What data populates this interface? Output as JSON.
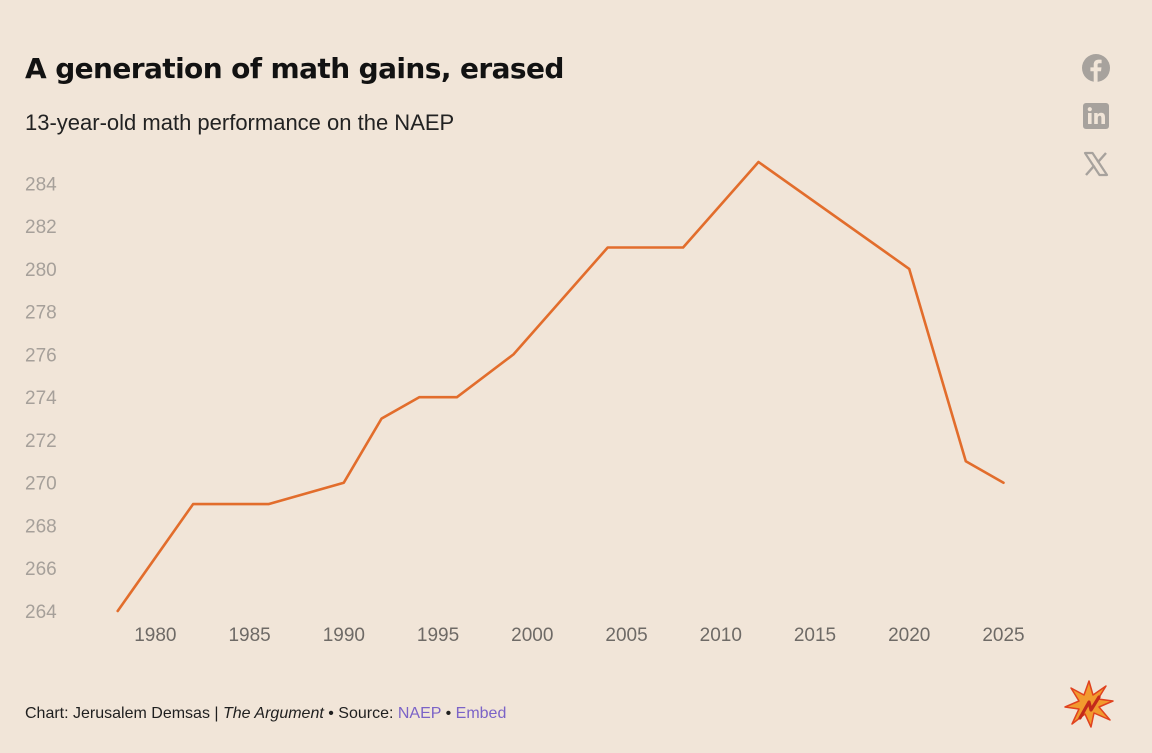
{
  "title": "A generation of math gains, erased",
  "subtitle": "13-year-old math performance on the NAEP",
  "share_icons": [
    "facebook-icon",
    "linkedin-icon",
    "x-icon"
  ],
  "footer": {
    "prefix": "Chart: Jerusalem Demsas | ",
    "publication": "The Argument",
    "source_sep": " • Source: ",
    "source_link": "NAEP",
    "embed_sep": " • ",
    "embed_link": "Embed"
  },
  "colors": {
    "background": "#f1e5d8",
    "line": "#e26d2c",
    "link": "#7b63c7",
    "y_tick": "#a6a09a",
    "x_tick": "#6e6a66"
  },
  "chart_data": {
    "type": "line",
    "title": "A generation of math gains, erased",
    "subtitle": "13-year-old math performance on the NAEP",
    "xlabel": "",
    "ylabel": "",
    "x": [
      1978,
      1982,
      1986,
      1990,
      1992,
      1994,
      1996,
      1999,
      2004,
      2008,
      2012,
      2020,
      2023,
      2025
    ],
    "series": [
      {
        "values": [
          264,
          269,
          269,
          270,
          273,
          274,
          274,
          276,
          281,
          281,
          285,
          280,
          271,
          270
        ]
      }
    ],
    "xlim": [
      1976,
      2028
    ],
    "ylim": [
      264,
      285
    ],
    "x_ticks": [
      1980,
      1985,
      1990,
      1995,
      2000,
      2005,
      2010,
      2015,
      2020,
      2025
    ],
    "y_ticks": [
      264,
      266,
      268,
      270,
      272,
      274,
      276,
      278,
      280,
      282,
      284
    ],
    "grid": false,
    "legend": "none"
  }
}
